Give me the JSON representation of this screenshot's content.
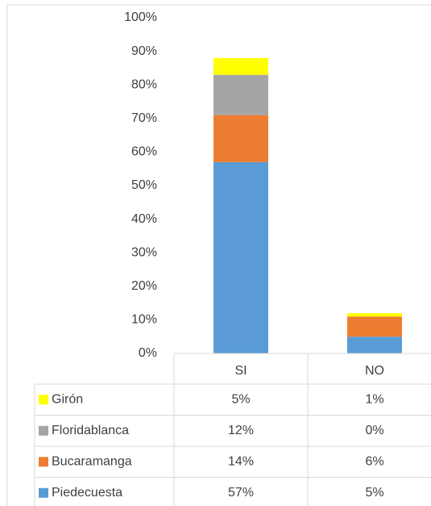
{
  "chart_data": {
    "type": "bar",
    "stacked": true,
    "categories": [
      "SI",
      "NO"
    ],
    "series": [
      {
        "name": "Piedecuesta",
        "color": "#5b9bd5",
        "values": [
          57,
          5
        ],
        "value_labels": [
          "57%",
          "5%"
        ]
      },
      {
        "name": "Bucaramanga",
        "color": "#ed7d31",
        "values": [
          14,
          6
        ],
        "value_labels": [
          "14%",
          "6%"
        ]
      },
      {
        "name": "Floridablanca",
        "color": "#a5a5a5",
        "values": [
          12,
          0
        ],
        "value_labels": [
          "12%",
          "0%"
        ]
      },
      {
        "name": "Girón",
        "color": "#ffff00",
        "values": [
          5,
          1
        ],
        "value_labels": [
          "5%",
          "1%"
        ]
      }
    ],
    "ylim": [
      0,
      100
    ],
    "yticks": [
      {
        "value": 0,
        "label": "0%"
      },
      {
        "value": 10,
        "label": "10%"
      },
      {
        "value": 20,
        "label": "20%"
      },
      {
        "value": 30,
        "label": "30%"
      },
      {
        "value": 40,
        "label": "40%"
      },
      {
        "value": 50,
        "label": "50%"
      },
      {
        "value": 60,
        "label": "60%"
      },
      {
        "value": 70,
        "label": "70%"
      },
      {
        "value": 80,
        "label": "80%"
      },
      {
        "value": 90,
        "label": "90%"
      },
      {
        "value": 100,
        "label": "100%"
      }
    ],
    "grid": false,
    "legend": "table"
  }
}
